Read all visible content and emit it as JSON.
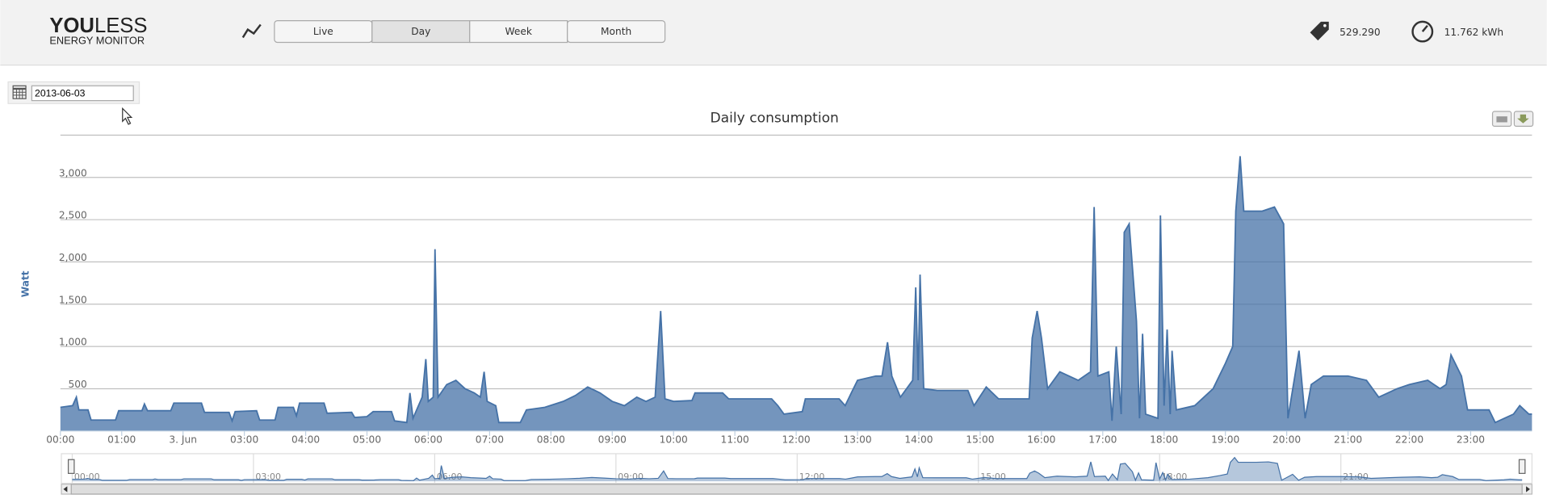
{
  "header": {
    "logo": {
      "brand_bold": "YOU",
      "brand_light": "LESS",
      "subtitle": "ENERGY MONITOR"
    },
    "tabs": [
      "Live",
      "Day",
      "Week",
      "Month"
    ],
    "active_tab": "Day",
    "counter": "529.290",
    "energy": "11.762 kWh"
  },
  "date_picker": {
    "value": "2013-06-03"
  },
  "chart_data": {
    "type": "area",
    "title": "Daily consumption",
    "y_label": "Watt",
    "color": "#4572a7",
    "x": [
      0.0,
      0.2,
      0.26,
      0.3,
      0.45,
      0.5,
      0.9,
      0.95,
      1.33,
      1.37,
      1.42,
      1.8,
      1.85,
      2.3,
      2.35,
      2.75,
      2.8,
      2.85,
      3.2,
      3.25,
      3.5,
      3.55,
      3.8,
      3.85,
      3.9,
      4.3,
      4.35,
      4.75,
      4.8,
      5.0,
      5.1,
      5.4,
      5.45,
      5.65,
      5.7,
      5.75,
      5.9,
      5.96,
      6.0,
      6.08,
      6.11,
      6.16,
      6.3,
      6.45,
      6.6,
      6.75,
      6.85,
      6.91,
      6.96,
      7.1,
      7.15,
      7.5,
      7.6,
      7.9,
      8.2,
      8.4,
      8.6,
      8.8,
      9.0,
      9.2,
      9.4,
      9.55,
      9.7,
      9.79,
      9.86,
      10.0,
      10.3,
      10.35,
      10.8,
      10.9,
      11.6,
      11.7,
      11.8,
      12.1,
      12.15,
      12.7,
      12.8,
      12.9,
      13.0,
      13.3,
      13.4,
      13.49,
      13.56,
      13.7,
      13.9,
      13.95,
      13.99,
      14.02,
      14.08,
      14.3,
      14.8,
      14.9,
      15.1,
      15.3,
      15.8,
      15.85,
      15.93,
      16.0,
      16.1,
      16.3,
      16.6,
      16.8,
      16.86,
      16.92,
      17.1,
      17.15,
      17.22,
      17.3,
      17.35,
      17.43,
      17.55,
      17.6,
      17.65,
      17.7,
      17.9,
      17.94,
      18.0,
      18.05,
      18.1,
      18.13,
      18.2,
      18.5,
      18.8,
      19.0,
      19.12,
      19.17,
      19.24,
      19.3,
      19.6,
      19.8,
      19.95,
      20.02,
      20.1,
      20.2,
      20.3,
      20.4,
      20.6,
      21.0,
      21.3,
      21.5,
      21.8,
      22.0,
      22.3,
      22.5,
      22.6,
      22.68,
      22.85,
      22.95,
      23.3,
      23.4,
      23.7,
      23.8,
      23.95,
      24.0
    ],
    "values": [
      280,
      300,
      400,
      250,
      250,
      130,
      130,
      240,
      240,
      320,
      240,
      240,
      330,
      330,
      220,
      220,
      120,
      230,
      240,
      130,
      130,
      280,
      280,
      180,
      330,
      330,
      210,
      220,
      160,
      170,
      230,
      230,
      120,
      100,
      450,
      150,
      400,
      850,
      350,
      400,
      2150,
      400,
      550,
      600,
      500,
      450,
      400,
      700,
      350,
      300,
      100,
      100,
      250,
      280,
      350,
      420,
      520,
      450,
      350,
      300,
      400,
      350,
      400,
      1420,
      380,
      350,
      360,
      450,
      450,
      380,
      380,
      300,
      200,
      230,
      380,
      380,
      300,
      450,
      600,
      650,
      650,
      1050,
      650,
      400,
      600,
      1700,
      600,
      1850,
      500,
      480,
      480,
      300,
      520,
      380,
      380,
      1100,
      1420,
      1100,
      500,
      700,
      600,
      700,
      2650,
      650,
      700,
      120,
      1000,
      200,
      2350,
      2450,
      1300,
      150,
      1150,
      200,
      150,
      2550,
      300,
      1200,
      200,
      950,
      250,
      300,
      500,
      800,
      1000,
      2600,
      3250,
      2600,
      2600,
      2650,
      2450,
      150,
      500,
      950,
      150,
      550,
      650,
      650,
      600,
      400,
      500,
      550,
      600,
      500,
      550,
      900,
      650,
      250,
      250,
      100,
      200,
      300,
      200,
      200
    ],
    "xlim": [
      0,
      24
    ],
    "xticks": [
      {
        "value": 0,
        "label": "00:00"
      },
      {
        "value": 1,
        "label": "01:00"
      },
      {
        "value": 2,
        "label": "3. Jun"
      },
      {
        "value": 3,
        "label": "03:00"
      },
      {
        "value": 4,
        "label": "04:00"
      },
      {
        "value": 5,
        "label": "05:00"
      },
      {
        "value": 6,
        "label": "06:00"
      },
      {
        "value": 7,
        "label": "07:00"
      },
      {
        "value": 8,
        "label": "08:00"
      },
      {
        "value": 9,
        "label": "09:00"
      },
      {
        "value": 10,
        "label": "10:00"
      },
      {
        "value": 11,
        "label": "11:00"
      },
      {
        "value": 12,
        "label": "12:00"
      },
      {
        "value": 13,
        "label": "13:00"
      },
      {
        "value": 14,
        "label": "14:00"
      },
      {
        "value": 15,
        "label": "15:00"
      },
      {
        "value": 16,
        "label": "16:00"
      },
      {
        "value": 17,
        "label": "17:00"
      },
      {
        "value": 18,
        "label": "18:00"
      },
      {
        "value": 19,
        "label": "19:00"
      },
      {
        "value": 20,
        "label": "20:00"
      },
      {
        "value": 21,
        "label": "21:00"
      },
      {
        "value": 22,
        "label": "22:00"
      },
      {
        "value": 23,
        "label": "23:00"
      }
    ],
    "ylim": [
      0,
      3500
    ],
    "yticks": [
      500,
      {
        "value": 1000,
        "label": "1,000"
      },
      {
        "value": 1500,
        "label": "1,500"
      },
      {
        "value": 2000,
        "label": "2,000"
      },
      {
        "value": 2500,
        "label": "2,500"
      },
      {
        "value": 3000,
        "label": "3,000"
      }
    ],
    "grid": true,
    "navigator": {
      "xticks": [
        {
          "value": 0,
          "label": "00:00"
        },
        {
          "value": 3,
          "label": "03:00"
        },
        {
          "value": 6,
          "label": "06:00"
        },
        {
          "value": 9,
          "label": "09:00"
        },
        {
          "value": 12,
          "label": "12:00"
        },
        {
          "value": 15,
          "label": "15:00"
        },
        {
          "value": 18,
          "label": "18:00"
        },
        {
          "value": 21,
          "label": "21:00"
        }
      ]
    }
  }
}
